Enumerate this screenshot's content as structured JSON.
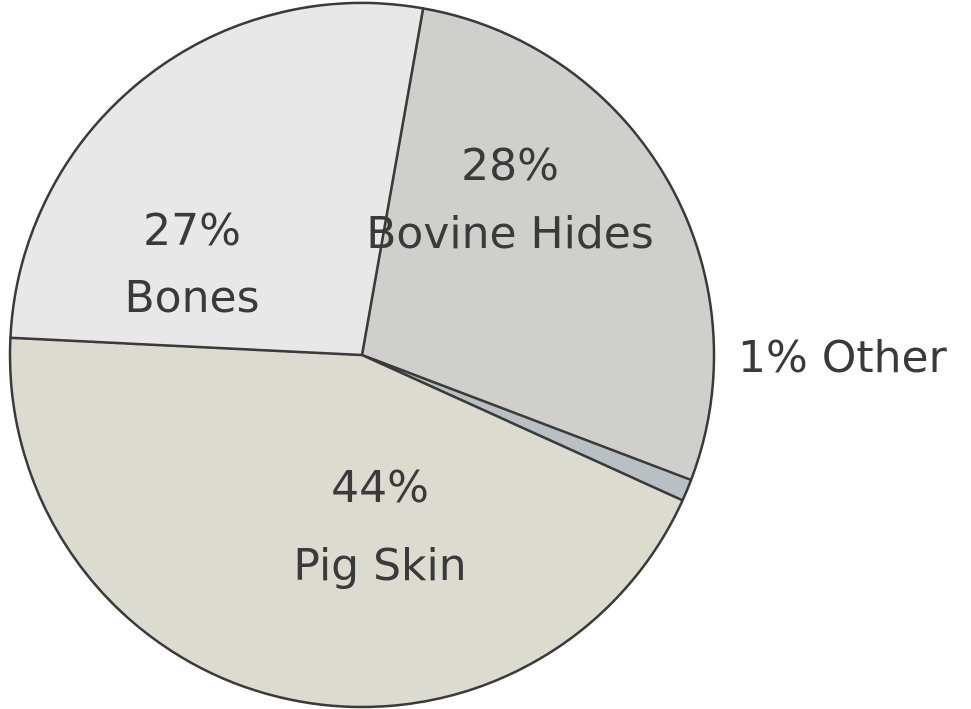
{
  "chart_data": {
    "type": "pie",
    "title": "",
    "slices": [
      {
        "label": "Bovine Hides",
        "percent_label": "28%",
        "value": 28,
        "color": "#cfcfcb"
      },
      {
        "label": "Other",
        "percent_label": "1%",
        "value": 1,
        "color": "#b8c0c4"
      },
      {
        "label": "Pig Skin",
        "percent_label": "44%",
        "value": 44,
        "color": "#dcdbd0"
      },
      {
        "label": "Bones",
        "percent_label": "27%",
        "value": 27,
        "color": "#e8e8e8"
      }
    ],
    "outside_labels": {
      "other": "1% Other"
    },
    "legend": "none"
  }
}
